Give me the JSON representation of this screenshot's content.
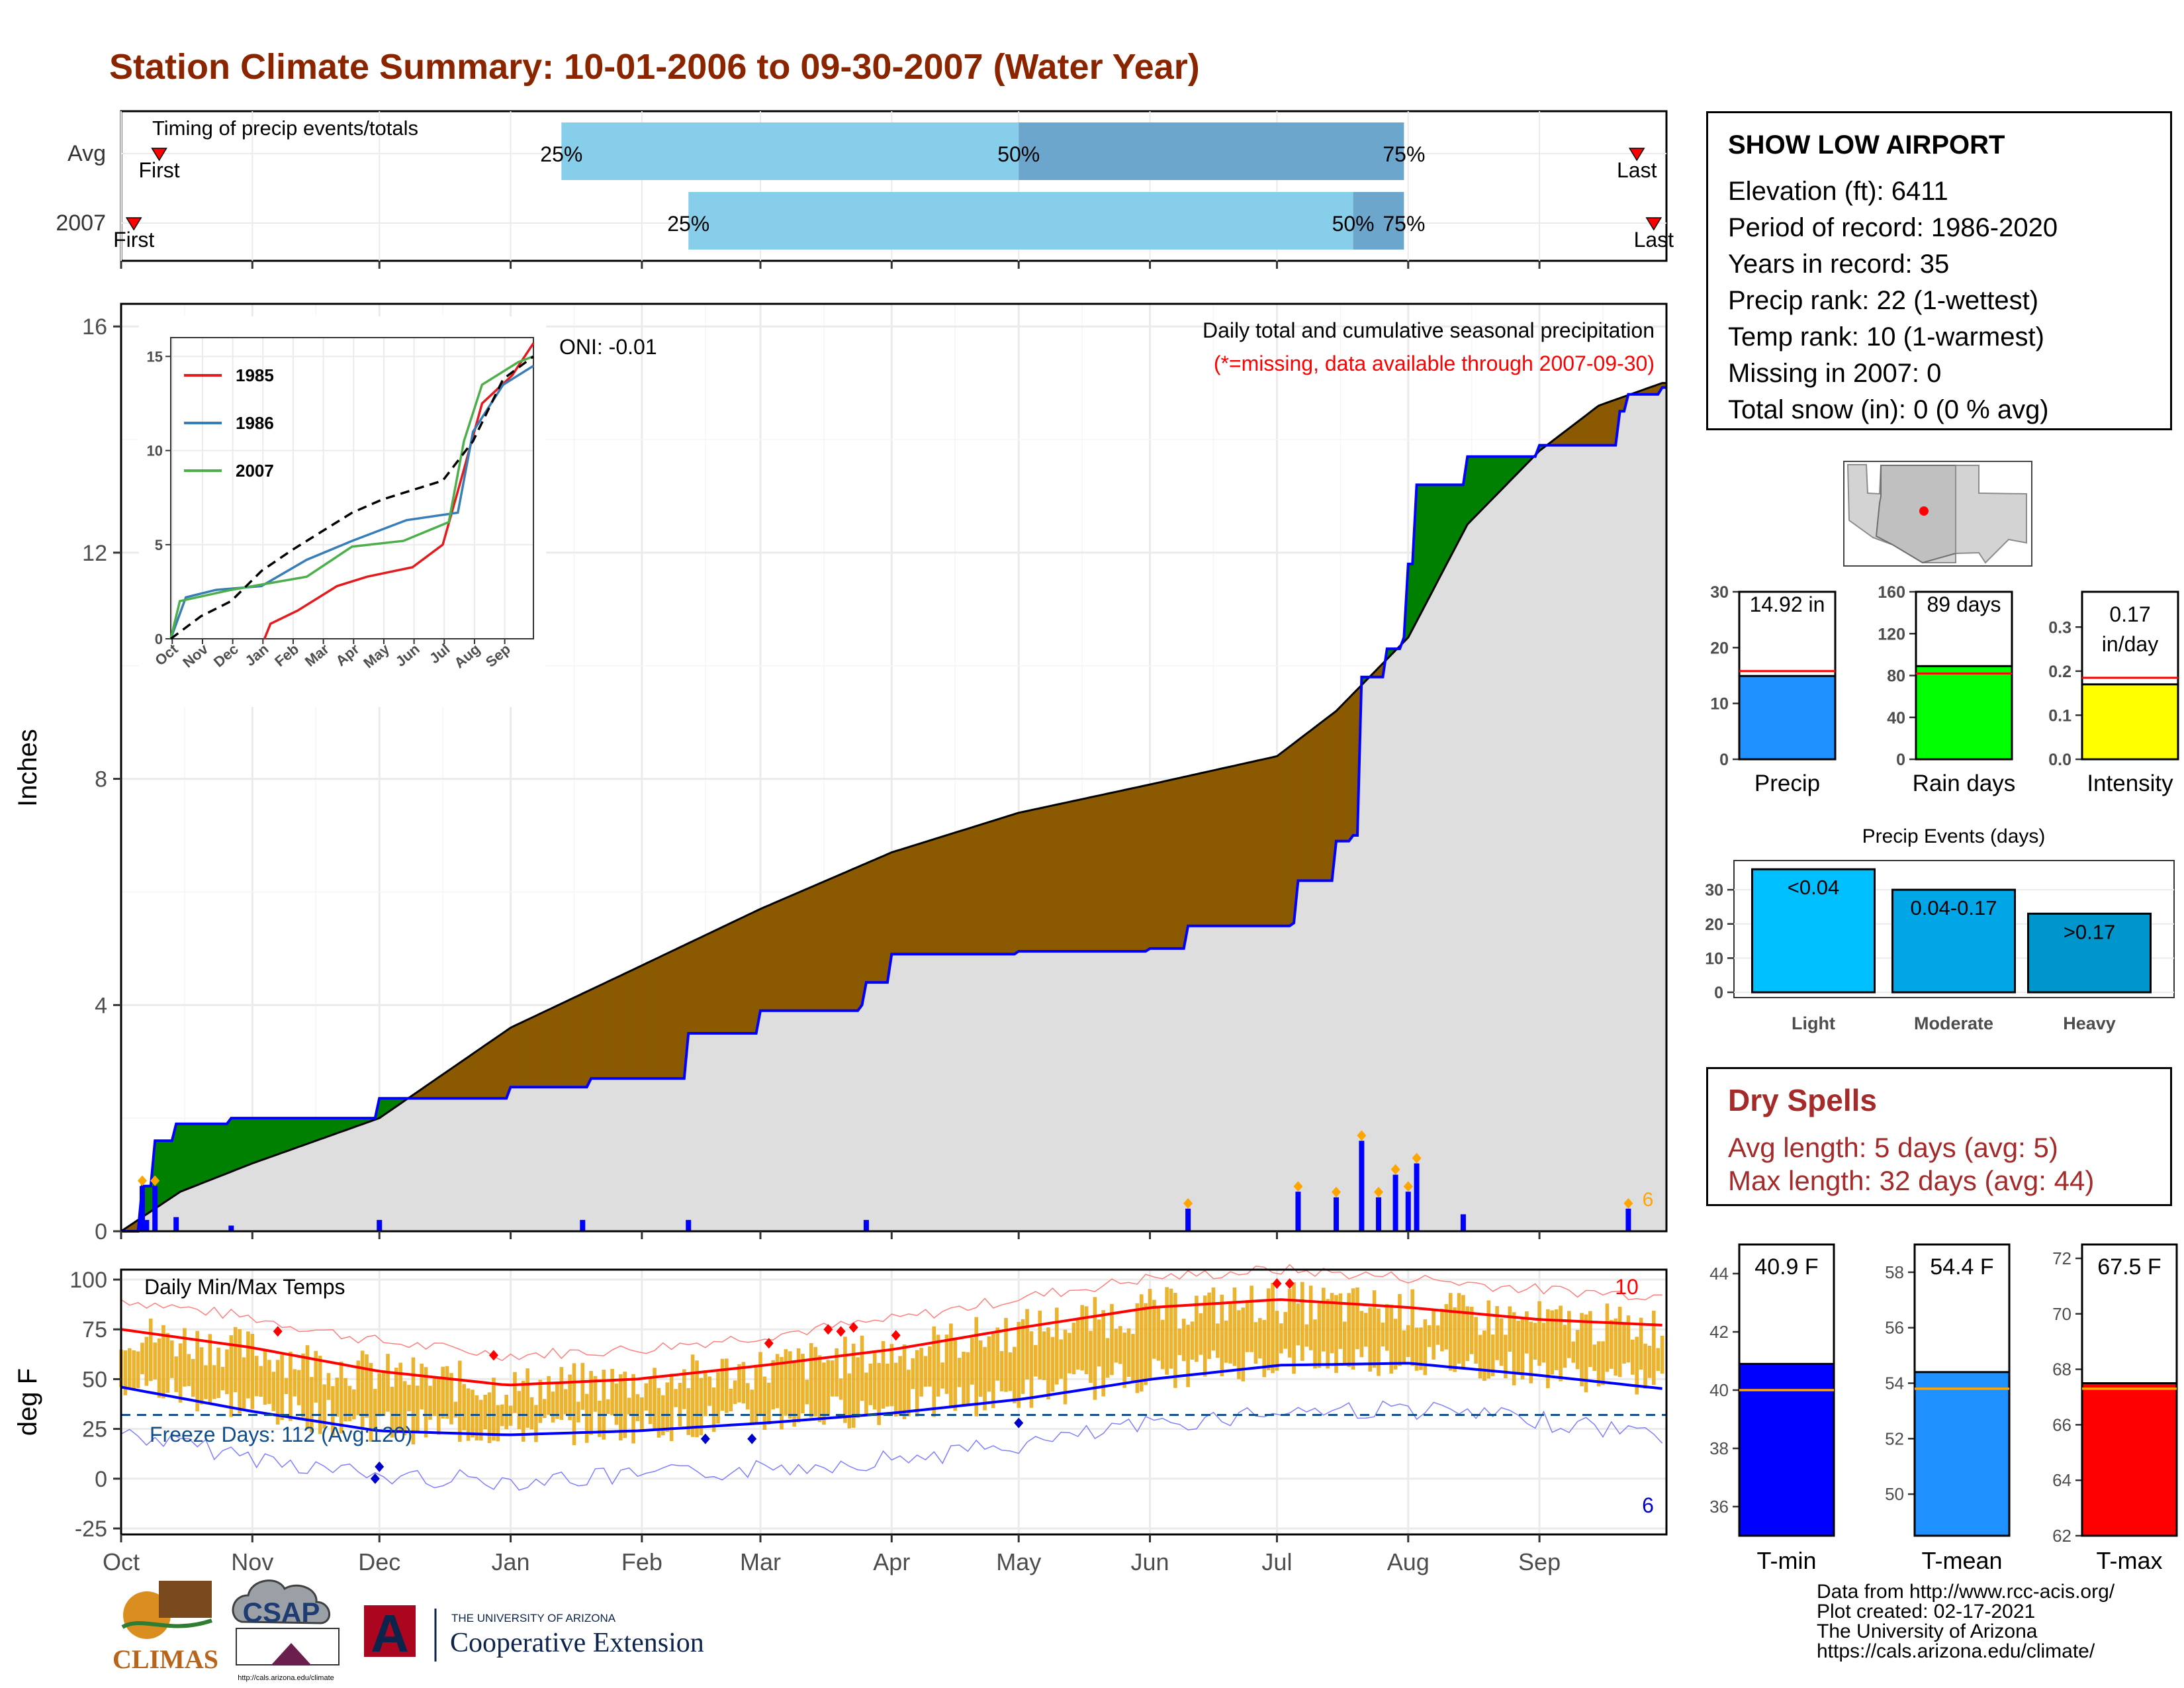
{
  "title": "Station Climate Summary: 10-01-2006 to 09-30-2007 (Water Year)",
  "timing": {
    "label": "Timing of precip events/totals",
    "rows": [
      {
        "name": "Avg",
        "first": "First",
        "last": "Last",
        "p25": "25%",
        "p50": "50%",
        "p75": "75%"
      },
      {
        "name": "2007",
        "first": "First",
        "last": "Last",
        "p25": "25%",
        "p50": "50%",
        "p75": "75%"
      }
    ]
  },
  "precip_panel": {
    "ylabel": "Inches",
    "title": "Daily total and cumulative seasonal precipitation",
    "subtitle": "(*=missing, data available through 2007-09-30)",
    "oni": "ONI: -0.01",
    "count_label": "6"
  },
  "temp_panel": {
    "ylabel": "deg F",
    "title": "Daily Min/Max Temps",
    "freeze": "Freeze Days: 112 (Avg:120)",
    "max_count": "10",
    "min_count": "6"
  },
  "station": {
    "name": "SHOW LOW AIRPORT",
    "lines": [
      "Elevation (ft): 6411",
      "Period of record: 1986-2020",
      "Years in record: 35",
      "Precip rank: 22 (1-wettest)",
      "Temp rank: 10 (1-warmest)",
      "Missing in 2007: 0",
      "Total snow (in): 0 (0 % avg)"
    ]
  },
  "summary_bars": [
    {
      "label": "Precip",
      "value_text": "14.92 in",
      "value": 14.92,
      "avg": 15.8,
      "ticks": [
        "0",
        "10",
        "20",
        "30"
      ],
      "max": 30,
      "color": "#1E90FF"
    },
    {
      "label": "Rain days",
      "value_text": "89 days",
      "value": 89,
      "avg": 82,
      "ticks": [
        "0",
        "40",
        "80",
        "120",
        "160"
      ],
      "max": 160,
      "color": "#00FF00"
    },
    {
      "label": "Intensity",
      "value_text": "0.17",
      "value_text2": "in/day",
      "value": 0.17,
      "avg": 0.185,
      "ticks": [
        "0.0",
        "0.1",
        "0.2",
        "0.3"
      ],
      "max": 0.38,
      "color": "#FFFF00"
    }
  ],
  "precip_events": {
    "title": "Precip Events (days)",
    "ticks": [
      "0",
      "10",
      "20",
      "30"
    ],
    "bars": [
      {
        "cat": "Light",
        "label": "<0.04",
        "value": 36,
        "color": "#00BFFF"
      },
      {
        "cat": "Moderate",
        "label": "0.04-0.17",
        "value": 30,
        "color": "#00A6E6"
      },
      {
        "cat": "Heavy",
        "label": ">0.17",
        "value": 23,
        "color": "#0096CC"
      }
    ]
  },
  "dry_spells": {
    "title": "Dry Spells",
    "lines": [
      "Avg length: 5 days (avg: 5)",
      "Max length: 32 days (avg: 44)"
    ]
  },
  "temp_bars": [
    {
      "label": "T-min",
      "value_text": "40.9 F",
      "value": 40.9,
      "avg": 40.0,
      "ticks": [
        "36",
        "38",
        "40",
        "42",
        "44"
      ],
      "min": 35,
      "max": 45,
      "color": "#0000FF"
    },
    {
      "label": "T-mean",
      "value_text": "54.4 F",
      "value": 54.4,
      "avg": 53.8,
      "ticks": [
        "50",
        "52",
        "54",
        "56",
        "58"
      ],
      "min": 48.5,
      "max": 59,
      "color": "#1E90FF"
    },
    {
      "label": "T-max",
      "value_text": "67.5 F",
      "value": 67.5,
      "avg": 67.3,
      "ticks": [
        "62",
        "64",
        "66",
        "68",
        "70",
        "72"
      ],
      "min": 62,
      "max": 72.5,
      "color": "#FF0000"
    }
  ],
  "footer": [
    "Data from http://www.rcc-acis.org/",
    "Plot created: 02-17-2021",
    "The University of Arizona",
    "https://cals.arizona.edu/climate/"
  ],
  "logos": {
    "climas": "CLIMAS",
    "csap": "CSAP",
    "csap_url": "http://cals.arizona.edu/climate",
    "ua_line1": "THE UNIVERSITY OF ARIZONA",
    "ua_line2": "Cooperative Extension",
    "ua_mark": "A"
  },
  "chart_data": [
    {
      "type": "bar",
      "name": "timing",
      "rows": [
        "Avg",
        "2007"
      ],
      "avg": {
        "first": "2006-10-10",
        "p25": "2007-01-13",
        "p50": "2007-05-01",
        "p75": "2007-07-31",
        "last": "2007-09-24"
      },
      "y2007": {
        "first": "2006-10-04",
        "p25": "2007-02-12",
        "p50": "2007-07-19",
        "p75": "2007-07-31",
        "last": "2007-09-28"
      }
    },
    {
      "type": "area",
      "name": "cumulative precipitation",
      "ylabel": "Inches",
      "ylim": [
        0,
        16
      ],
      "yticks": [
        0,
        4,
        8,
        12,
        16
      ],
      "xticks": [
        "Oct",
        "Nov",
        "Dec",
        "Jan",
        "Feb",
        "Mar",
        "Apr",
        "May",
        "Jun",
        "Jul",
        "Aug",
        "Sep"
      ],
      "avg_cumulative": [
        {
          "x": "2006-10-01",
          "y": 0
        },
        {
          "x": "2006-10-15",
          "y": 0.7
        },
        {
          "x": "2006-11-01",
          "y": 1.2
        },
        {
          "x": "2006-12-01",
          "y": 2.0
        },
        {
          "x": "2007-01-01",
          "y": 3.6
        },
        {
          "x": "2007-02-01",
          "y": 4.7
        },
        {
          "x": "2007-03-01",
          "y": 5.7
        },
        {
          "x": "2007-04-01",
          "y": 6.7
        },
        {
          "x": "2007-05-01",
          "y": 7.4
        },
        {
          "x": "2007-06-01",
          "y": 7.9
        },
        {
          "x": "2007-07-01",
          "y": 8.4
        },
        {
          "x": "2007-07-15",
          "y": 9.2
        },
        {
          "x": "2007-08-01",
          "y": 10.5
        },
        {
          "x": "2007-08-15",
          "y": 12.5
        },
        {
          "x": "2007-09-01",
          "y": 13.8
        },
        {
          "x": "2007-09-15",
          "y": 14.6
        },
        {
          "x": "2007-09-30",
          "y": 15.0
        }
      ],
      "cumulative_2007": [
        {
          "x": "2006-10-01",
          "y": 0
        },
        {
          "x": "2006-10-06",
          "y": 0.8
        },
        {
          "x": "2006-10-09",
          "y": 1.6
        },
        {
          "x": "2006-10-14",
          "y": 1.9
        },
        {
          "x": "2006-10-27",
          "y": 2.0
        },
        {
          "x": "2006-12-01",
          "y": 2.35
        },
        {
          "x": "2007-01-01",
          "y": 2.55
        },
        {
          "x": "2007-01-20",
          "y": 2.7
        },
        {
          "x": "2007-02-12",
          "y": 3.5
        },
        {
          "x": "2007-03-01",
          "y": 3.9
        },
        {
          "x": "2007-03-25",
          "y": 4.0
        },
        {
          "x": "2007-03-26",
          "y": 4.4
        },
        {
          "x": "2007-04-01",
          "y": 4.9
        },
        {
          "x": "2007-05-01",
          "y": 4.95
        },
        {
          "x": "2007-06-01",
          "y": 5.0
        },
        {
          "x": "2007-06-10",
          "y": 5.4
        },
        {
          "x": "2007-07-05",
          "y": 5.45
        },
        {
          "x": "2007-07-06",
          "y": 6.2
        },
        {
          "x": "2007-07-15",
          "y": 6.9
        },
        {
          "x": "2007-07-19",
          "y": 7.0
        },
        {
          "x": "2007-07-21",
          "y": 9.8
        },
        {
          "x": "2007-07-27",
          "y": 10.3
        },
        {
          "x": "2007-07-31",
          "y": 10.5
        },
        {
          "x": "2007-08-01",
          "y": 11.8
        },
        {
          "x": "2007-08-03",
          "y": 13.2
        },
        {
          "x": "2007-08-15",
          "y": 13.7
        },
        {
          "x": "2007-09-01",
          "y": 13.9
        },
        {
          "x": "2007-09-20",
          "y": 14.5
        },
        {
          "x": "2007-09-22",
          "y": 14.8
        },
        {
          "x": "2007-09-30",
          "y": 14.92
        }
      ],
      "daily_2007": [
        {
          "x": "2006-10-06",
          "y": 0.8
        },
        {
          "x": "2006-10-07",
          "y": 0.2
        },
        {
          "x": "2006-10-09",
          "y": 0.8
        },
        {
          "x": "2006-10-14",
          "y": 0.25
        },
        {
          "x": "2006-10-27",
          "y": 0.1
        },
        {
          "x": "2006-12-01",
          "y": 0.2
        },
        {
          "x": "2007-01-18",
          "y": 0.2
        },
        {
          "x": "2007-02-12",
          "y": 0.2
        },
        {
          "x": "2007-03-26",
          "y": 0.2
        },
        {
          "x": "2007-06-10",
          "y": 0.4
        },
        {
          "x": "2007-07-06",
          "y": 0.7
        },
        {
          "x": "2007-07-15",
          "y": 0.6
        },
        {
          "x": "2007-07-21",
          "y": 1.6
        },
        {
          "x": "2007-07-25",
          "y": 0.6
        },
        {
          "x": "2007-07-29",
          "y": 1.0
        },
        {
          "x": "2007-08-01",
          "y": 0.7
        },
        {
          "x": "2007-08-03",
          "y": 1.2
        },
        {
          "x": "2007-08-14",
          "y": 0.3
        },
        {
          "x": "2007-09-22",
          "y": 0.4
        }
      ],
      "inset": {
        "yticks": [
          0,
          5,
          10,
          15
        ],
        "xticks": [
          "Oct",
          "Nov",
          "Dec",
          "Jan",
          "Feb",
          "Mar",
          "Apr",
          "May",
          "Jun",
          "Jul",
          "Aug",
          "Sep"
        ],
        "series": [
          {
            "name": "1985",
            "color": "#E41A1C",
            "values": [
              [
                3.1,
                0
              ],
              [
                3.3,
                0.8
              ],
              [
                4.2,
                1.5
              ],
              [
                5.5,
                2.8
              ],
              [
                6.5,
                3.3
              ],
              [
                8.0,
                3.8
              ],
              [
                9.0,
                5.0
              ],
              [
                9.7,
                9.0
              ],
              [
                10.3,
                12.5
              ],
              [
                11.3,
                14.0
              ],
              [
                12,
                15.7
              ]
            ]
          },
          {
            "name": "1986",
            "color": "#377EB8",
            "values": [
              [
                0,
                0
              ],
              [
                0.5,
                2.2
              ],
              [
                1.5,
                2.6
              ],
              [
                3,
                2.8
              ],
              [
                4.5,
                4.2
              ],
              [
                6,
                5.2
              ],
              [
                7.8,
                6.3
              ],
              [
                9.5,
                6.7
              ],
              [
                10.0,
                11.0
              ],
              [
                11.0,
                13.5
              ],
              [
                12,
                14.5
              ]
            ]
          },
          {
            "name": "2007",
            "color": "#4DAF4A",
            "values": [
              [
                0,
                0
              ],
              [
                0.3,
                2.0
              ],
              [
                2,
                2.6
              ],
              [
                4.5,
                3.3
              ],
              [
                6,
                4.9
              ],
              [
                7.7,
                5.2
              ],
              [
                9.2,
                6.2
              ],
              [
                9.7,
                10.5
              ],
              [
                10.3,
                13.5
              ],
              [
                11.5,
                14.7
              ],
              [
                12,
                15.0
              ]
            ]
          },
          {
            "name": "avg",
            "color": "#000000",
            "values": [
              [
                0,
                0
              ],
              [
                1,
                1.2
              ],
              [
                2,
                2.0
              ],
              [
                3,
                3.6
              ],
              [
                4,
                4.7
              ],
              [
                5,
                5.7
              ],
              [
                6,
                6.7
              ],
              [
                7,
                7.4
              ],
              [
                8,
                7.9
              ],
              [
                9,
                8.4
              ],
              [
                10,
                10.5
              ],
              [
                11,
                13.8
              ],
              [
                12,
                15.0
              ]
            ]
          }
        ]
      }
    },
    {
      "type": "line",
      "name": "daily temperatures",
      "ylabel": "deg F",
      "ylim": [
        -28,
        105
      ],
      "yticks": [
        -25,
        0,
        25,
        50,
        75,
        100
      ],
      "xticks": [
        "Oct",
        "Nov",
        "Dec",
        "Jan",
        "Feb",
        "Mar",
        "Apr",
        "May",
        "Jun",
        "Jul",
        "Aug",
        "Sep"
      ],
      "freeze_line": 32,
      "normal_max": [
        [
          0,
          75
        ],
        [
          1,
          66
        ],
        [
          2,
          54
        ],
        [
          3,
          47
        ],
        [
          4,
          50
        ],
        [
          5,
          57
        ],
        [
          6,
          65
        ],
        [
          7,
          76
        ],
        [
          8,
          86
        ],
        [
          9,
          90
        ],
        [
          10,
          86
        ],
        [
          11,
          80
        ],
        [
          12,
          77
        ]
      ],
      "normal_min": [
        [
          0,
          46
        ],
        [
          1,
          34
        ],
        [
          2,
          24
        ],
        [
          3,
          22
        ],
        [
          4,
          24
        ],
        [
          5,
          28
        ],
        [
          6,
          33
        ],
        [
          7,
          40
        ],
        [
          8,
          50
        ],
        [
          9,
          57
        ],
        [
          10,
          58
        ],
        [
          11,
          52
        ],
        [
          12,
          45
        ]
      ]
    }
  ]
}
